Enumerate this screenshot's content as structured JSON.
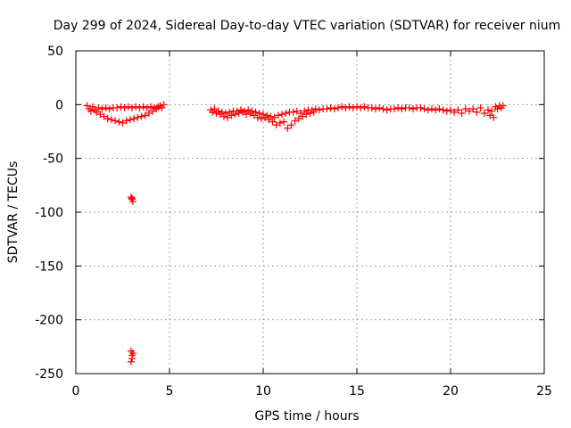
{
  "chart_data": {
    "type": "scatter",
    "title": "Day 299 of 2024, Sidereal Day-to-day VTEC variation (SDTVAR) for receiver nium",
    "xlabel": "GPS time / hours",
    "ylabel": "SDTVAR / TECUs",
    "xlim": [
      0,
      25
    ],
    "ylim": [
      -250,
      50
    ],
    "xticks": [
      0,
      5,
      10,
      15,
      20,
      25
    ],
    "yticks": [
      -250,
      -200,
      -150,
      -100,
      -50,
      0,
      50
    ],
    "grid": true,
    "legend": "none",
    "marker": "+",
    "colors": {
      "series": "#ff0000",
      "grid": "#a0a0a0",
      "frame": "#000000"
    },
    "series": [
      {
        "name": "SDTVAR",
        "points": [
          [
            0.6,
            -1
          ],
          [
            0.7,
            -4
          ],
          [
            0.8,
            -6
          ],
          [
            0.9,
            -2
          ],
          [
            1.0,
            -5
          ],
          [
            1.1,
            -7
          ],
          [
            1.2,
            -3
          ],
          [
            1.3,
            -9
          ],
          [
            1.4,
            -4
          ],
          [
            1.5,
            -11
          ],
          [
            1.6,
            -3
          ],
          [
            1.7,
            -13
          ],
          [
            1.8,
            -4
          ],
          [
            1.9,
            -14
          ],
          [
            2.0,
            -3
          ],
          [
            2.1,
            -15
          ],
          [
            2.2,
            -3
          ],
          [
            2.3,
            -16
          ],
          [
            2.4,
            -2
          ],
          [
            2.5,
            -17
          ],
          [
            2.6,
            -3
          ],
          [
            2.7,
            -15
          ],
          [
            2.8,
            -2
          ],
          [
            2.9,
            -14
          ],
          [
            3.0,
            -3
          ],
          [
            3.1,
            -13
          ],
          [
            3.2,
            -2
          ],
          [
            3.3,
            -12
          ],
          [
            3.4,
            -3
          ],
          [
            3.5,
            -11
          ],
          [
            3.6,
            -2
          ],
          [
            3.7,
            -10
          ],
          [
            3.8,
            -3
          ],
          [
            3.9,
            -8
          ],
          [
            4.0,
            -2
          ],
          [
            4.1,
            -6
          ],
          [
            4.2,
            -3
          ],
          [
            4.3,
            -4
          ],
          [
            4.4,
            -2
          ],
          [
            4.5,
            -1
          ],
          [
            4.6,
            -3
          ],
          [
            4.7,
            0
          ],
          [
            2.95,
            -86
          ],
          [
            3.0,
            -88
          ],
          [
            3.05,
            -90
          ],
          [
            3.0,
            -87
          ],
          [
            2.95,
            -229
          ],
          [
            3.0,
            -233
          ],
          [
            3.0,
            -236
          ],
          [
            2.95,
            -239
          ],
          [
            3.05,
            -231
          ],
          [
            7.2,
            -5
          ],
          [
            7.3,
            -7
          ],
          [
            7.4,
            -4
          ],
          [
            7.5,
            -8
          ],
          [
            7.6,
            -6
          ],
          [
            7.7,
            -9
          ],
          [
            7.8,
            -7
          ],
          [
            7.9,
            -11
          ],
          [
            8.0,
            -8
          ],
          [
            8.1,
            -12
          ],
          [
            8.2,
            -7
          ],
          [
            8.3,
            -10
          ],
          [
            8.4,
            -6
          ],
          [
            8.5,
            -9
          ],
          [
            8.6,
            -6
          ],
          [
            8.7,
            -8
          ],
          [
            8.8,
            -5
          ],
          [
            8.9,
            -7
          ],
          [
            9.0,
            -6
          ],
          [
            9.1,
            -9
          ],
          [
            9.2,
            -5
          ],
          [
            9.3,
            -8
          ],
          [
            9.4,
            -6
          ],
          [
            9.5,
            -10
          ],
          [
            9.6,
            -7
          ],
          [
            9.7,
            -12
          ],
          [
            9.8,
            -8
          ],
          [
            9.9,
            -13
          ],
          [
            10.0,
            -9
          ],
          [
            10.1,
            -12
          ],
          [
            10.2,
            -10
          ],
          [
            10.3,
            -14
          ],
          [
            10.4,
            -11
          ],
          [
            10.5,
            -16
          ],
          [
            10.6,
            -12
          ],
          [
            10.7,
            -19
          ],
          [
            10.8,
            -10
          ],
          [
            10.9,
            -17
          ],
          [
            11.0,
            -9
          ],
          [
            11.1,
            -16
          ],
          [
            11.2,
            -8
          ],
          [
            11.3,
            -22
          ],
          [
            11.4,
            -7
          ],
          [
            11.5,
            -19
          ],
          [
            11.6,
            -7
          ],
          [
            11.7,
            -15
          ],
          [
            11.8,
            -6
          ],
          [
            11.9,
            -13
          ],
          [
            12.0,
            -8
          ],
          [
            12.1,
            -11
          ],
          [
            12.2,
            -6
          ],
          [
            12.3,
            -9
          ],
          [
            12.4,
            -5
          ],
          [
            12.5,
            -8
          ],
          [
            12.6,
            -5
          ],
          [
            12.7,
            -7
          ],
          [
            12.8,
            -4
          ],
          [
            13.0,
            -5
          ],
          [
            13.2,
            -4
          ],
          [
            13.4,
            -4
          ],
          [
            13.6,
            -3
          ],
          [
            13.8,
            -4
          ],
          [
            14.0,
            -3
          ],
          [
            14.2,
            -2
          ],
          [
            14.4,
            -3
          ],
          [
            14.6,
            -2
          ],
          [
            14.8,
            -3
          ],
          [
            15.0,
            -2
          ],
          [
            15.2,
            -3
          ],
          [
            15.4,
            -2
          ],
          [
            15.6,
            -3
          ],
          [
            15.8,
            -3
          ],
          [
            16.0,
            -4
          ],
          [
            16.2,
            -3
          ],
          [
            16.4,
            -4
          ],
          [
            16.6,
            -5
          ],
          [
            16.8,
            -4
          ],
          [
            17.0,
            -4
          ],
          [
            17.2,
            -3
          ],
          [
            17.4,
            -4
          ],
          [
            17.6,
            -3
          ],
          [
            17.8,
            -3
          ],
          [
            18.0,
            -4
          ],
          [
            18.2,
            -3
          ],
          [
            18.4,
            -3
          ],
          [
            18.6,
            -4
          ],
          [
            18.8,
            -5
          ],
          [
            19.0,
            -4
          ],
          [
            19.2,
            -5
          ],
          [
            19.4,
            -4
          ],
          [
            19.6,
            -5
          ],
          [
            19.8,
            -6
          ],
          [
            20.0,
            -5
          ],
          [
            20.2,
            -7
          ],
          [
            20.4,
            -5
          ],
          [
            20.6,
            -8
          ],
          [
            20.8,
            -4
          ],
          [
            21.0,
            -6
          ],
          [
            21.2,
            -4
          ],
          [
            21.4,
            -7
          ],
          [
            21.6,
            -3
          ],
          [
            21.8,
            -8
          ],
          [
            22.0,
            -5
          ],
          [
            22.1,
            -10
          ],
          [
            22.2,
            -6
          ],
          [
            22.3,
            -12
          ],
          [
            22.4,
            -2
          ],
          [
            22.5,
            -4
          ],
          [
            22.6,
            -1
          ],
          [
            22.7,
            -3
          ],
          [
            22.8,
            -1
          ]
        ]
      }
    ]
  }
}
